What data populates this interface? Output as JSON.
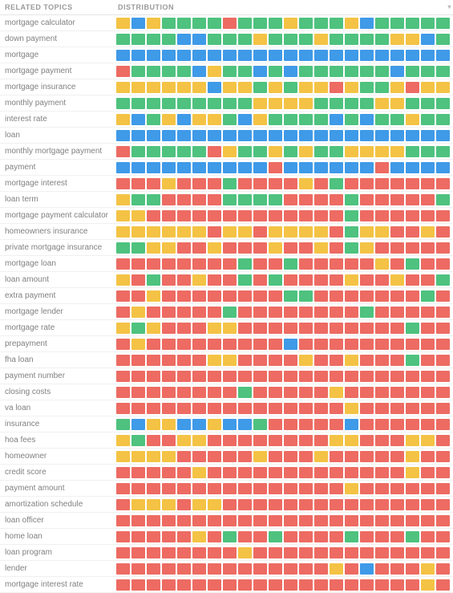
{
  "headers": {
    "topics": "RELATED TOPICS",
    "distribution": "DISTRIBUTION"
  },
  "colors": {
    "g": "#4ec27e",
    "y": "#f4c345",
    "b": "#3f9ae8",
    "r": "#ed6b62"
  },
  "rows": [
    {
      "label": "mortgage calculator",
      "cells": "ybyggggrgggygggybggggg"
    },
    {
      "label": "down payment",
      "cells": "ggggbbgggygggyggggyybg"
    },
    {
      "label": "mortgage",
      "cells": "bbbbbbbbbbbbbbbbbbbbbb"
    },
    {
      "label": "mortgage payment",
      "cells": "rggggbyggbgbggggggbggg"
    },
    {
      "label": "mortgage insurance",
      "cells": "yyyyyybyygygyyryggyryy"
    },
    {
      "label": "monthly payment",
      "cells": "gggggggggyyyyggggyyggg"
    },
    {
      "label": "interest rate",
      "cells": "ybgybyygbyggggbgbggygg"
    },
    {
      "label": "loan",
      "cells": "bbbbbbbbbbbbbbbbbbbbbb"
    },
    {
      "label": "monthly mortgage payment",
      "cells": "rgggggryggygyggyyyyggg"
    },
    {
      "label": "payment",
      "cells": "bbbbbbbbbbrbbbbbbrbbbb"
    },
    {
      "label": "mortgage interest",
      "cells": "rrryrrrgrrrryrgrrrrrrr"
    },
    {
      "label": "loan term",
      "cells": "yggrrrrggggrrrrgrrrrrg"
    },
    {
      "label": "mortgage payment calculator",
      "cells": "yyrrrrrrrrrrrrrgrrrrrr"
    },
    {
      "label": "homeowners insurance",
      "cells": "yyyyyyryyryyyyrgyyrryr"
    },
    {
      "label": "private mortgage insurance",
      "cells": "ggyyrryrrryrryrgyrrrrr"
    },
    {
      "label": "mortgage loan",
      "cells": "rrrrrrrrgrrgrrrrryrgrr"
    },
    {
      "label": "loan amount",
      "cells": "yrgrryrrgrgrrrryrryrrg"
    },
    {
      "label": "extra payment",
      "cells": "rryrrrrrrrrggrrrrrrrgr"
    },
    {
      "label": "mortgage lender",
      "cells": "ryrrrrrgrrrrrrrrgrrrrr"
    },
    {
      "label": "mortgage rate",
      "cells": "ygyrrryyrrrrrrrrrrrgrr"
    },
    {
      "label": "prepayment",
      "cells": "ryrrrrrrrrrbrrrrrrrrrr"
    },
    {
      "label": "fha loan",
      "cells": "rrrrrryyrrrryrryrrrgrr"
    },
    {
      "label": "payment number",
      "cells": "rrrrrrrrrrrrrrrrrrrrrr"
    },
    {
      "label": "closing costs",
      "cells": "rrrrrrrrgrrrrryrrrrrrr"
    },
    {
      "label": "va loan",
      "cells": "rrrrrrrrrrrrrrryrrrrrr"
    },
    {
      "label": "insurance",
      "cells": "gbyybbybbgrrrrrbrrrrrr"
    },
    {
      "label": "hoa fees",
      "cells": "ygrryyrrrrrrrryyrrryyr"
    },
    {
      "label": "homeowner",
      "cells": "yyyyrrrrryrrryrrrrryrr"
    },
    {
      "label": "credit score",
      "cells": "rrrrryrrrrrrrrrrrrryrr"
    },
    {
      "label": "payment amount",
      "cells": "rrrrrrrrrrrrrrryrrrrrr"
    },
    {
      "label": "amortization schedule",
      "cells": "ryyyryyrrrrrrrrrrrrrrr"
    },
    {
      "label": "loan officer",
      "cells": "rrrrrrrrrrrrrrrrrrrrrr"
    },
    {
      "label": "home loan",
      "cells": "rrrrryrgrrgrrrrgrrrgrr"
    },
    {
      "label": "loan program",
      "cells": "rrrrrrrryrrrrrrrrrrrrr"
    },
    {
      "label": "lender",
      "cells": "rrrrrrrrrrrrrryrbrrryr"
    },
    {
      "label": "mortgage interest rate",
      "cells": "rrrrrrrrrrrrrrrrrrrryr"
    }
  ]
}
